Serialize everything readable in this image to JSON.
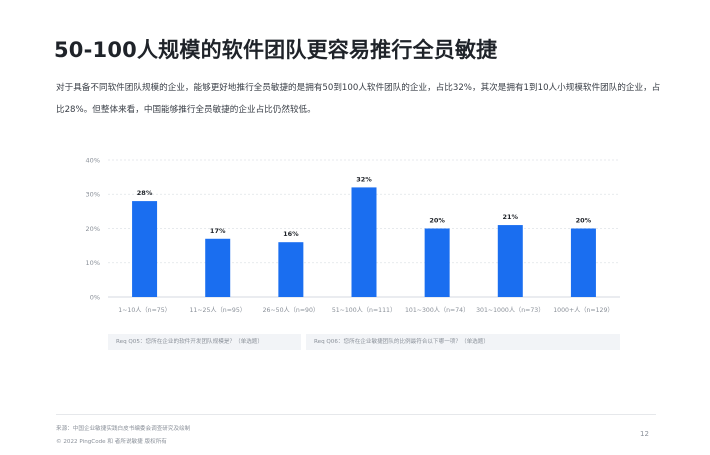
{
  "page": {
    "title": "50-100人规模的软件团队更容易推行全员敏捷",
    "description": "对于具备不同软件团队规模的企业，能够更好地推行全员敏捷的是拥有50到100人软件团队的企业，占比32%，其次是拥有1到10人小规模软件团队的企业，占比28%。但整体来看，中国能够推行全员敏捷的企业占比仍然较低。",
    "notes": [
      "Req Q05：您所在企业的软件开发团队规模是？（单选题）",
      "Req Q06：您所在企业敏捷团队的比例最符合以下哪一项？（单选题）"
    ],
    "source": "来源：中国企业敏捷实践白皮书编委会调查研究及绘制",
    "copyright": "© 2022 PingCode 和 者所说敏捷 版权所有",
    "page_number": "12"
  },
  "chart_data": {
    "type": "bar",
    "categories": [
      "1~10人（n=75）",
      "11~25人（n=95）",
      "26~50人（n=90）",
      "51~100人（n=111）",
      "101~300人（n=74）",
      "301~1000人（n=73）",
      "1000+人（n=129）"
    ],
    "values": [
      28,
      17,
      16,
      32,
      20,
      21,
      20
    ],
    "value_labels": [
      "28%",
      "17%",
      "16%",
      "32%",
      "20%",
      "21%",
      "20%"
    ],
    "yticks": [
      "0%",
      "10%",
      "20%",
      "30%",
      "40%"
    ],
    "ylim": [
      0,
      40
    ],
    "grid": true,
    "bar_color": "#1a6ef0",
    "grid_color": "#dfe3e8",
    "axis_color": "#c9ced6"
  }
}
